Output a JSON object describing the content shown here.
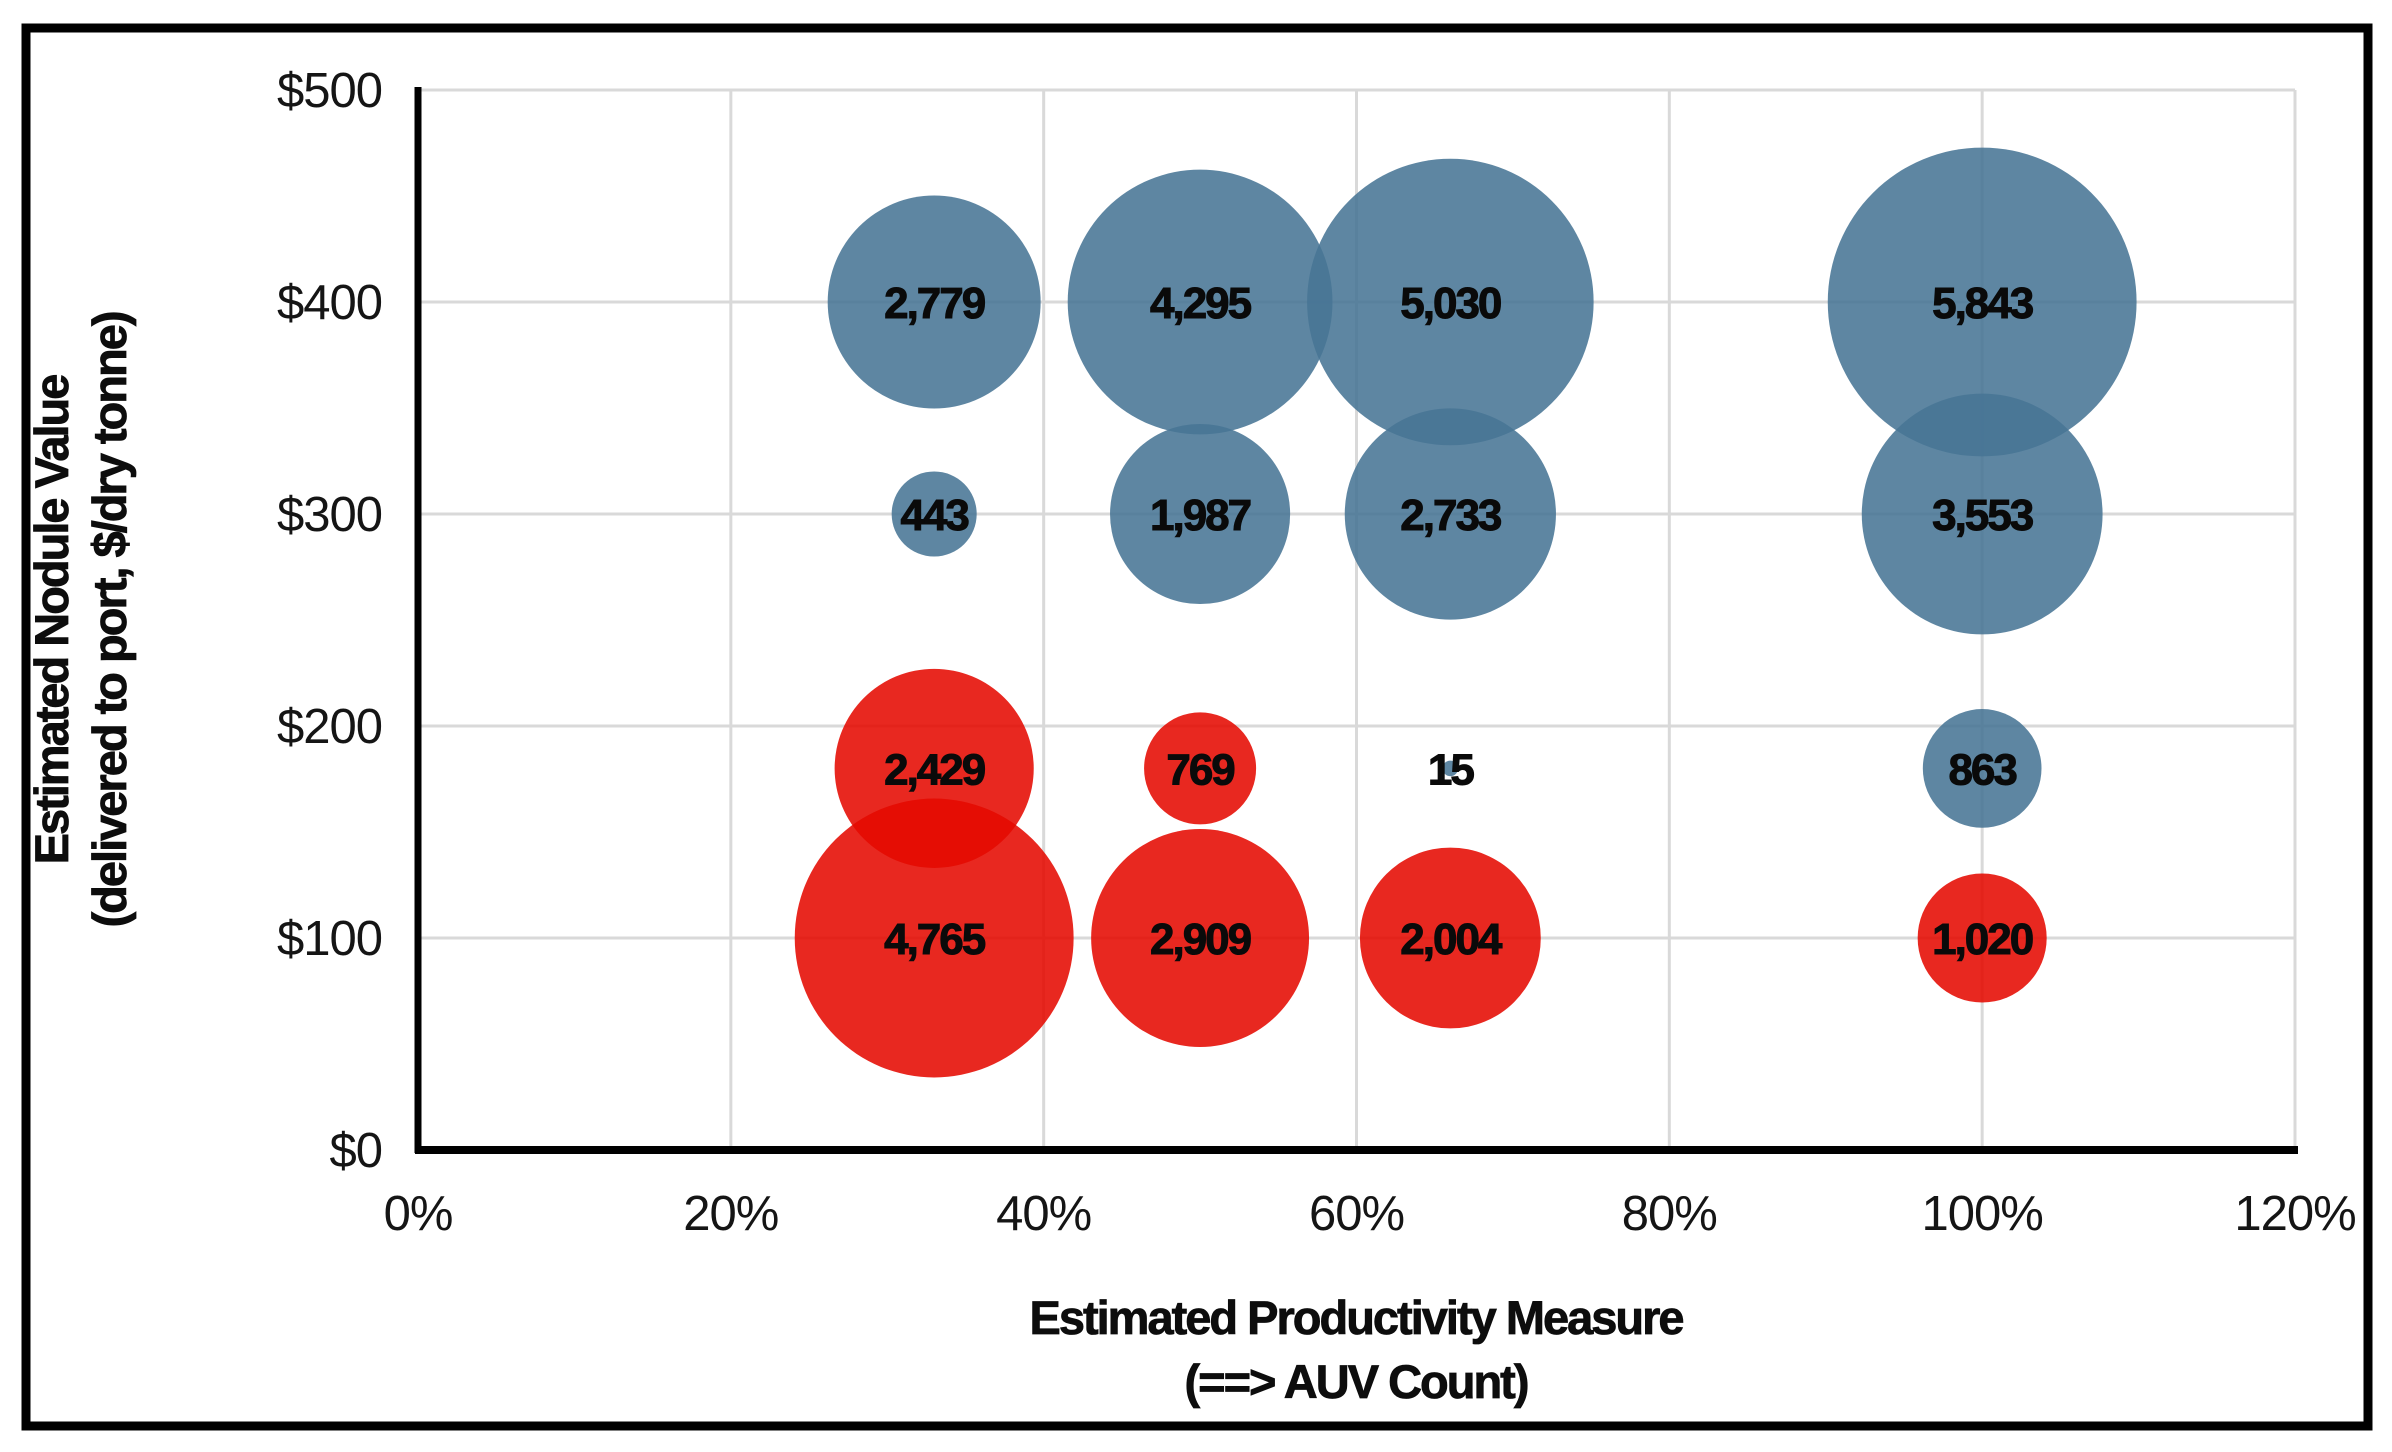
{
  "figure": {
    "background_color": "#FFFFFF",
    "border_color": "#000000",
    "gridline_color": "#D9D9D9",
    "axis_line_color": "#000000",
    "label_color": "#0A0A0A"
  },
  "chart_data": {
    "type": "bubble",
    "title": "",
    "xlabel_line1": "Estimated Productivity Measure",
    "xlabel_line2": "(==> AUV Count)",
    "ylabel_line1": "Estimated Nodule Value",
    "ylabel_line2": "(delivered to port, $/dry tonne)",
    "xlim": [
      0,
      120
    ],
    "ylim": [
      0,
      500
    ],
    "grid": true,
    "legend_position": "none",
    "bubble_sizing": "area proportional to value",
    "x_ticks": [
      {
        "value": 0,
        "label": "0%"
      },
      {
        "value": 20,
        "label": "20%"
      },
      {
        "value": 40,
        "label": "40%"
      },
      {
        "value": 60,
        "label": "60%"
      },
      {
        "value": 80,
        "label": "80%"
      },
      {
        "value": 100,
        "label": "100%"
      },
      {
        "value": 120,
        "label": "120%"
      }
    ],
    "y_ticks": [
      {
        "value": 0,
        "label": "$0"
      },
      {
        "value": 100,
        "label": "$100"
      },
      {
        "value": 200,
        "label": "$200"
      },
      {
        "value": 300,
        "label": "$300"
      },
      {
        "value": 400,
        "label": "$400"
      },
      {
        "value": 500,
        "label": "$500"
      }
    ],
    "series": [
      {
        "name": "blue-bubbles",
        "color": "#5E86A2",
        "points": [
          {
            "x": 33,
            "y": 400,
            "value": 2779,
            "label": "2,779"
          },
          {
            "x": 50,
            "y": 400,
            "value": 4295,
            "label": "4,295"
          },
          {
            "x": 66,
            "y": 400,
            "value": 5030,
            "label": "5,030"
          },
          {
            "x": 100,
            "y": 400,
            "value": 5843,
            "label": "5,843"
          },
          {
            "x": 33,
            "y": 300,
            "value": 443,
            "label": "443"
          },
          {
            "x": 50,
            "y": 300,
            "value": 1987,
            "label": "1,987"
          },
          {
            "x": 66,
            "y": 300,
            "value": 2733,
            "label": "2,733"
          },
          {
            "x": 100,
            "y": 300,
            "value": 3553,
            "label": "3,553"
          },
          {
            "x": 66,
            "y": 180,
            "value": 15,
            "label": "15"
          },
          {
            "x": 100,
            "y": 180,
            "value": 863,
            "label": "863"
          }
        ]
      },
      {
        "name": "red-bubbles",
        "color": "#E8281F",
        "points": [
          {
            "x": 33,
            "y": 180,
            "value": 2429,
            "label": "2,429"
          },
          {
            "x": 50,
            "y": 180,
            "value": 769,
            "label": "769"
          },
          {
            "x": 33,
            "y": 100,
            "value": 4765,
            "label": "4,765"
          },
          {
            "x": 50,
            "y": 100,
            "value": 2909,
            "label": "2,909"
          },
          {
            "x": 66,
            "y": 100,
            "value": 2004,
            "label": "2,004"
          },
          {
            "x": 100,
            "y": 100,
            "value": 1020,
            "label": "1,020"
          }
        ]
      }
    ]
  }
}
